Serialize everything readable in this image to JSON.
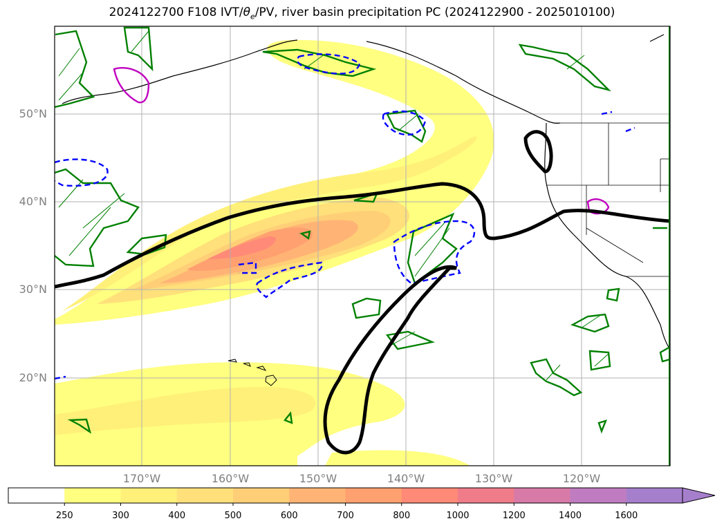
{
  "title": "2024122700 F108 IVT/θe/PV, river basin precipitation PC (2024122900 - 2025010100)",
  "title_parts": {
    "pre": "2024122700 F108 IVT/",
    "theta": "θ",
    "sub": "e",
    "post": "/PV, river basin precipitation PC (2024122900 - 2025010100)"
  },
  "lat_labels": [
    "50°N",
    "40°N",
    "30°N",
    "20°N"
  ],
  "lon_labels": [
    "170°W",
    "160°W",
    "150°W",
    "140°W",
    "130°W",
    "120°W"
  ],
  "colorbar": {
    "ticks": [
      "250",
      "300",
      "400",
      "500",
      "600",
      "700",
      "800",
      "1000",
      "1200",
      "1400",
      "1600"
    ],
    "colors": [
      "#ffffff",
      "#ffff80",
      "#fff07a",
      "#ffe07a",
      "#ffcf78",
      "#ffb475",
      "#ffa070",
      "#ff8a78",
      "#f07c8a",
      "#d87aa8",
      "#bf7cc0",
      "#a67fcc"
    ],
    "extend": "max"
  },
  "colors": {
    "ivt_light": "#ffff80",
    "ivt_mid": "#ffe07a",
    "ivt_core": "#ff8a78",
    "pv_contour": "#000000",
    "theta_dashed": "#0000ff",
    "precip_hatch": "#008000",
    "magenta": "#c000c0",
    "grid": "#b0b0b0"
  }
}
